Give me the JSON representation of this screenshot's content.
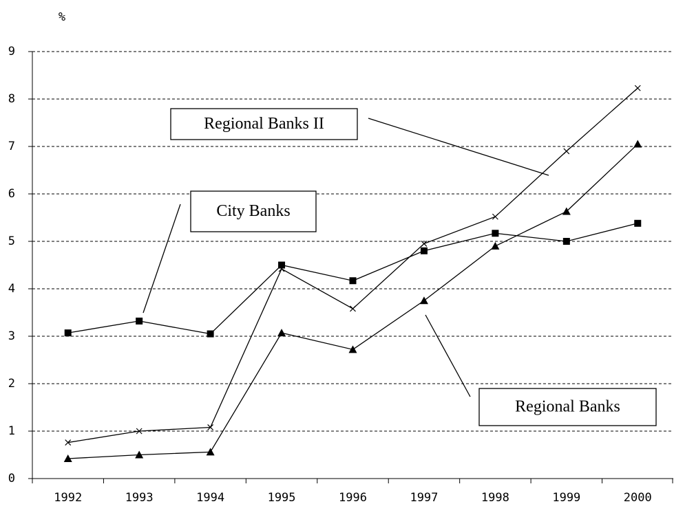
{
  "chart_data": {
    "type": "line",
    "ylabel": "%",
    "categories": [
      "1992",
      "1993",
      "1994",
      "1995",
      "1996",
      "1997",
      "1998",
      "1999",
      "2000"
    ],
    "series": [
      {
        "name": "City Banks",
        "color": "#000000",
        "marker": "square",
        "values": [
          3.07,
          3.32,
          3.05,
          4.5,
          4.17,
          4.8,
          5.17,
          5.0,
          5.38
        ]
      },
      {
        "name": "Regional Banks",
        "color": "#000000",
        "marker": "triangle",
        "values": [
          0.42,
          0.5,
          0.56,
          3.07,
          2.72,
          3.75,
          4.9,
          5.63,
          7.05
        ]
      },
      {
        "name": "Regional Banks II",
        "color": "#000000",
        "marker": "x",
        "values": [
          0.76,
          1.0,
          1.08,
          4.42,
          3.58,
          4.95,
          5.52,
          6.9,
          8.23
        ]
      }
    ],
    "ylim": [
      0,
      9
    ],
    "yticks": [
      0,
      1,
      2,
      3,
      4,
      5,
      6,
      7,
      8,
      9
    ],
    "grid": true
  }
}
